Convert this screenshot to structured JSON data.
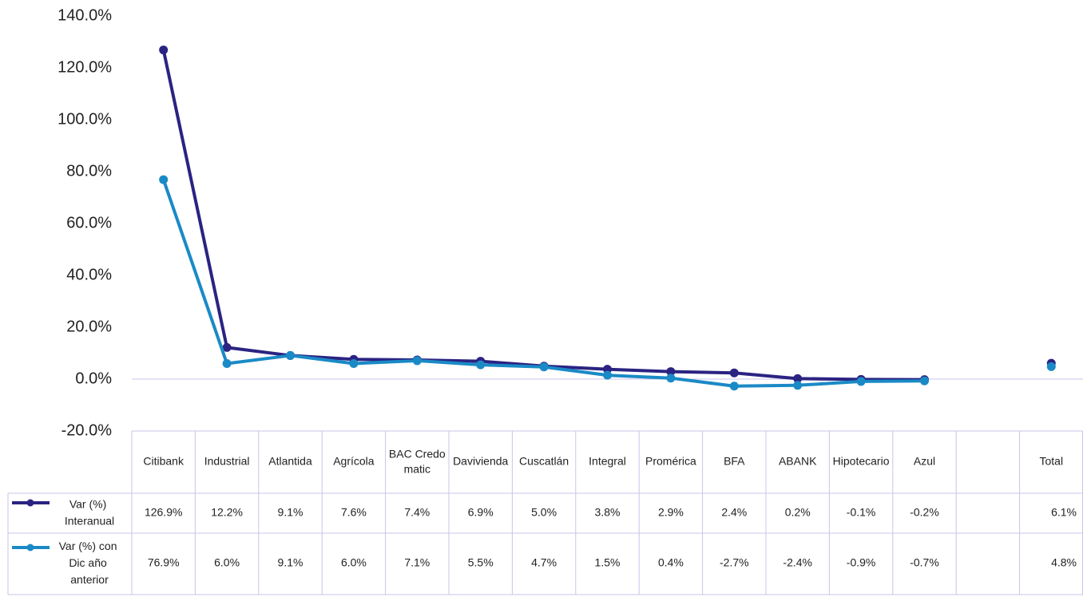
{
  "chart_data": {
    "type": "line",
    "categories": [
      "Citibank",
      "Industrial",
      "Atlantida",
      "Agrícola",
      "BAC Credomatic",
      "Davivienda",
      "Cuscatlán",
      "Integral",
      "Promérica",
      "BFA",
      "ABANK",
      "Hipotecario",
      "Azul",
      null,
      "Total"
    ],
    "series": [
      {
        "name": "Var (%) Interanual",
        "color": "#2b2382",
        "values": [
          126.9,
          12.2,
          9.1,
          7.6,
          7.4,
          6.9,
          5.0,
          3.8,
          2.9,
          2.4,
          0.2,
          -0.1,
          -0.2,
          null,
          6.1
        ],
        "value_labels": [
          "126.9%",
          "12.2%",
          "9.1%",
          "7.6%",
          "7.4%",
          "6.9%",
          "5.0%",
          "3.8%",
          "2.9%",
          "2.4%",
          "0.2%",
          "-0.1%",
          "-0.2%",
          null,
          "6.1%"
        ]
      },
      {
        "name": "Var (%) con Dic año anterior",
        "color": "#1a8ac6",
        "values": [
          76.9,
          6.0,
          9.1,
          6.0,
          7.1,
          5.5,
          4.7,
          1.5,
          0.4,
          -2.7,
          -2.4,
          -0.9,
          -0.7,
          null,
          4.8
        ],
        "value_labels": [
          "76.9%",
          "6.0%",
          "9.1%",
          "6.0%",
          "7.1%",
          "5.5%",
          "4.7%",
          "1.5%",
          "0.4%",
          "-2.7%",
          "-2.4%",
          "-0.9%",
          "-0.7%",
          null,
          "4.8%"
        ]
      }
    ],
    "ylim": [
      -20,
      140
    ],
    "yticks": [
      {
        "value": -20,
        "label": "-20.0%"
      },
      {
        "value": 0,
        "label": "0.0%"
      },
      {
        "value": 20,
        "label": "20.0%"
      },
      {
        "value": 40,
        "label": "40.0%"
      },
      {
        "value": 60,
        "label": "60.0%"
      },
      {
        "value": 80,
        "label": "80.0%"
      },
      {
        "value": 100,
        "label": "100.0%"
      },
      {
        "value": 120,
        "label": "120.0%"
      },
      {
        "value": 140,
        "label": "140.0%"
      }
    ],
    "grid": false
  }
}
